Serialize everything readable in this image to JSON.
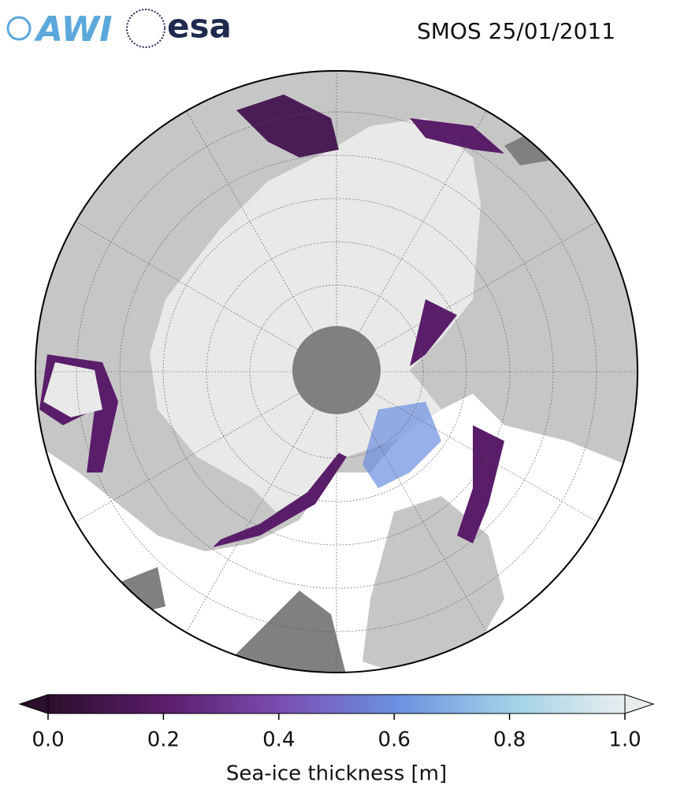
{
  "title": "SMOS 25/01/2011",
  "logos": {
    "awi": "AWI",
    "esa": "esa"
  },
  "colorbar": {
    "label": "Sea-ice thickness [m]",
    "lim": [
      0,
      1
    ],
    "ticks": [
      {
        "value": 0,
        "label": "0.0"
      },
      {
        "value": 0.2,
        "label": "0.2"
      },
      {
        "value": 0.4,
        "label": "0.4"
      },
      {
        "value": 0.6,
        "label": "0.6"
      },
      {
        "value": 0.8,
        "label": "0.8"
      },
      {
        "value": 1,
        "label": "1.0"
      }
    ],
    "colors": [
      "#2b0f2c",
      "#5a1d6a",
      "#7a4cb0",
      "#6b8fe0",
      "#9fd0e6",
      "#e8eeee"
    ]
  }
}
